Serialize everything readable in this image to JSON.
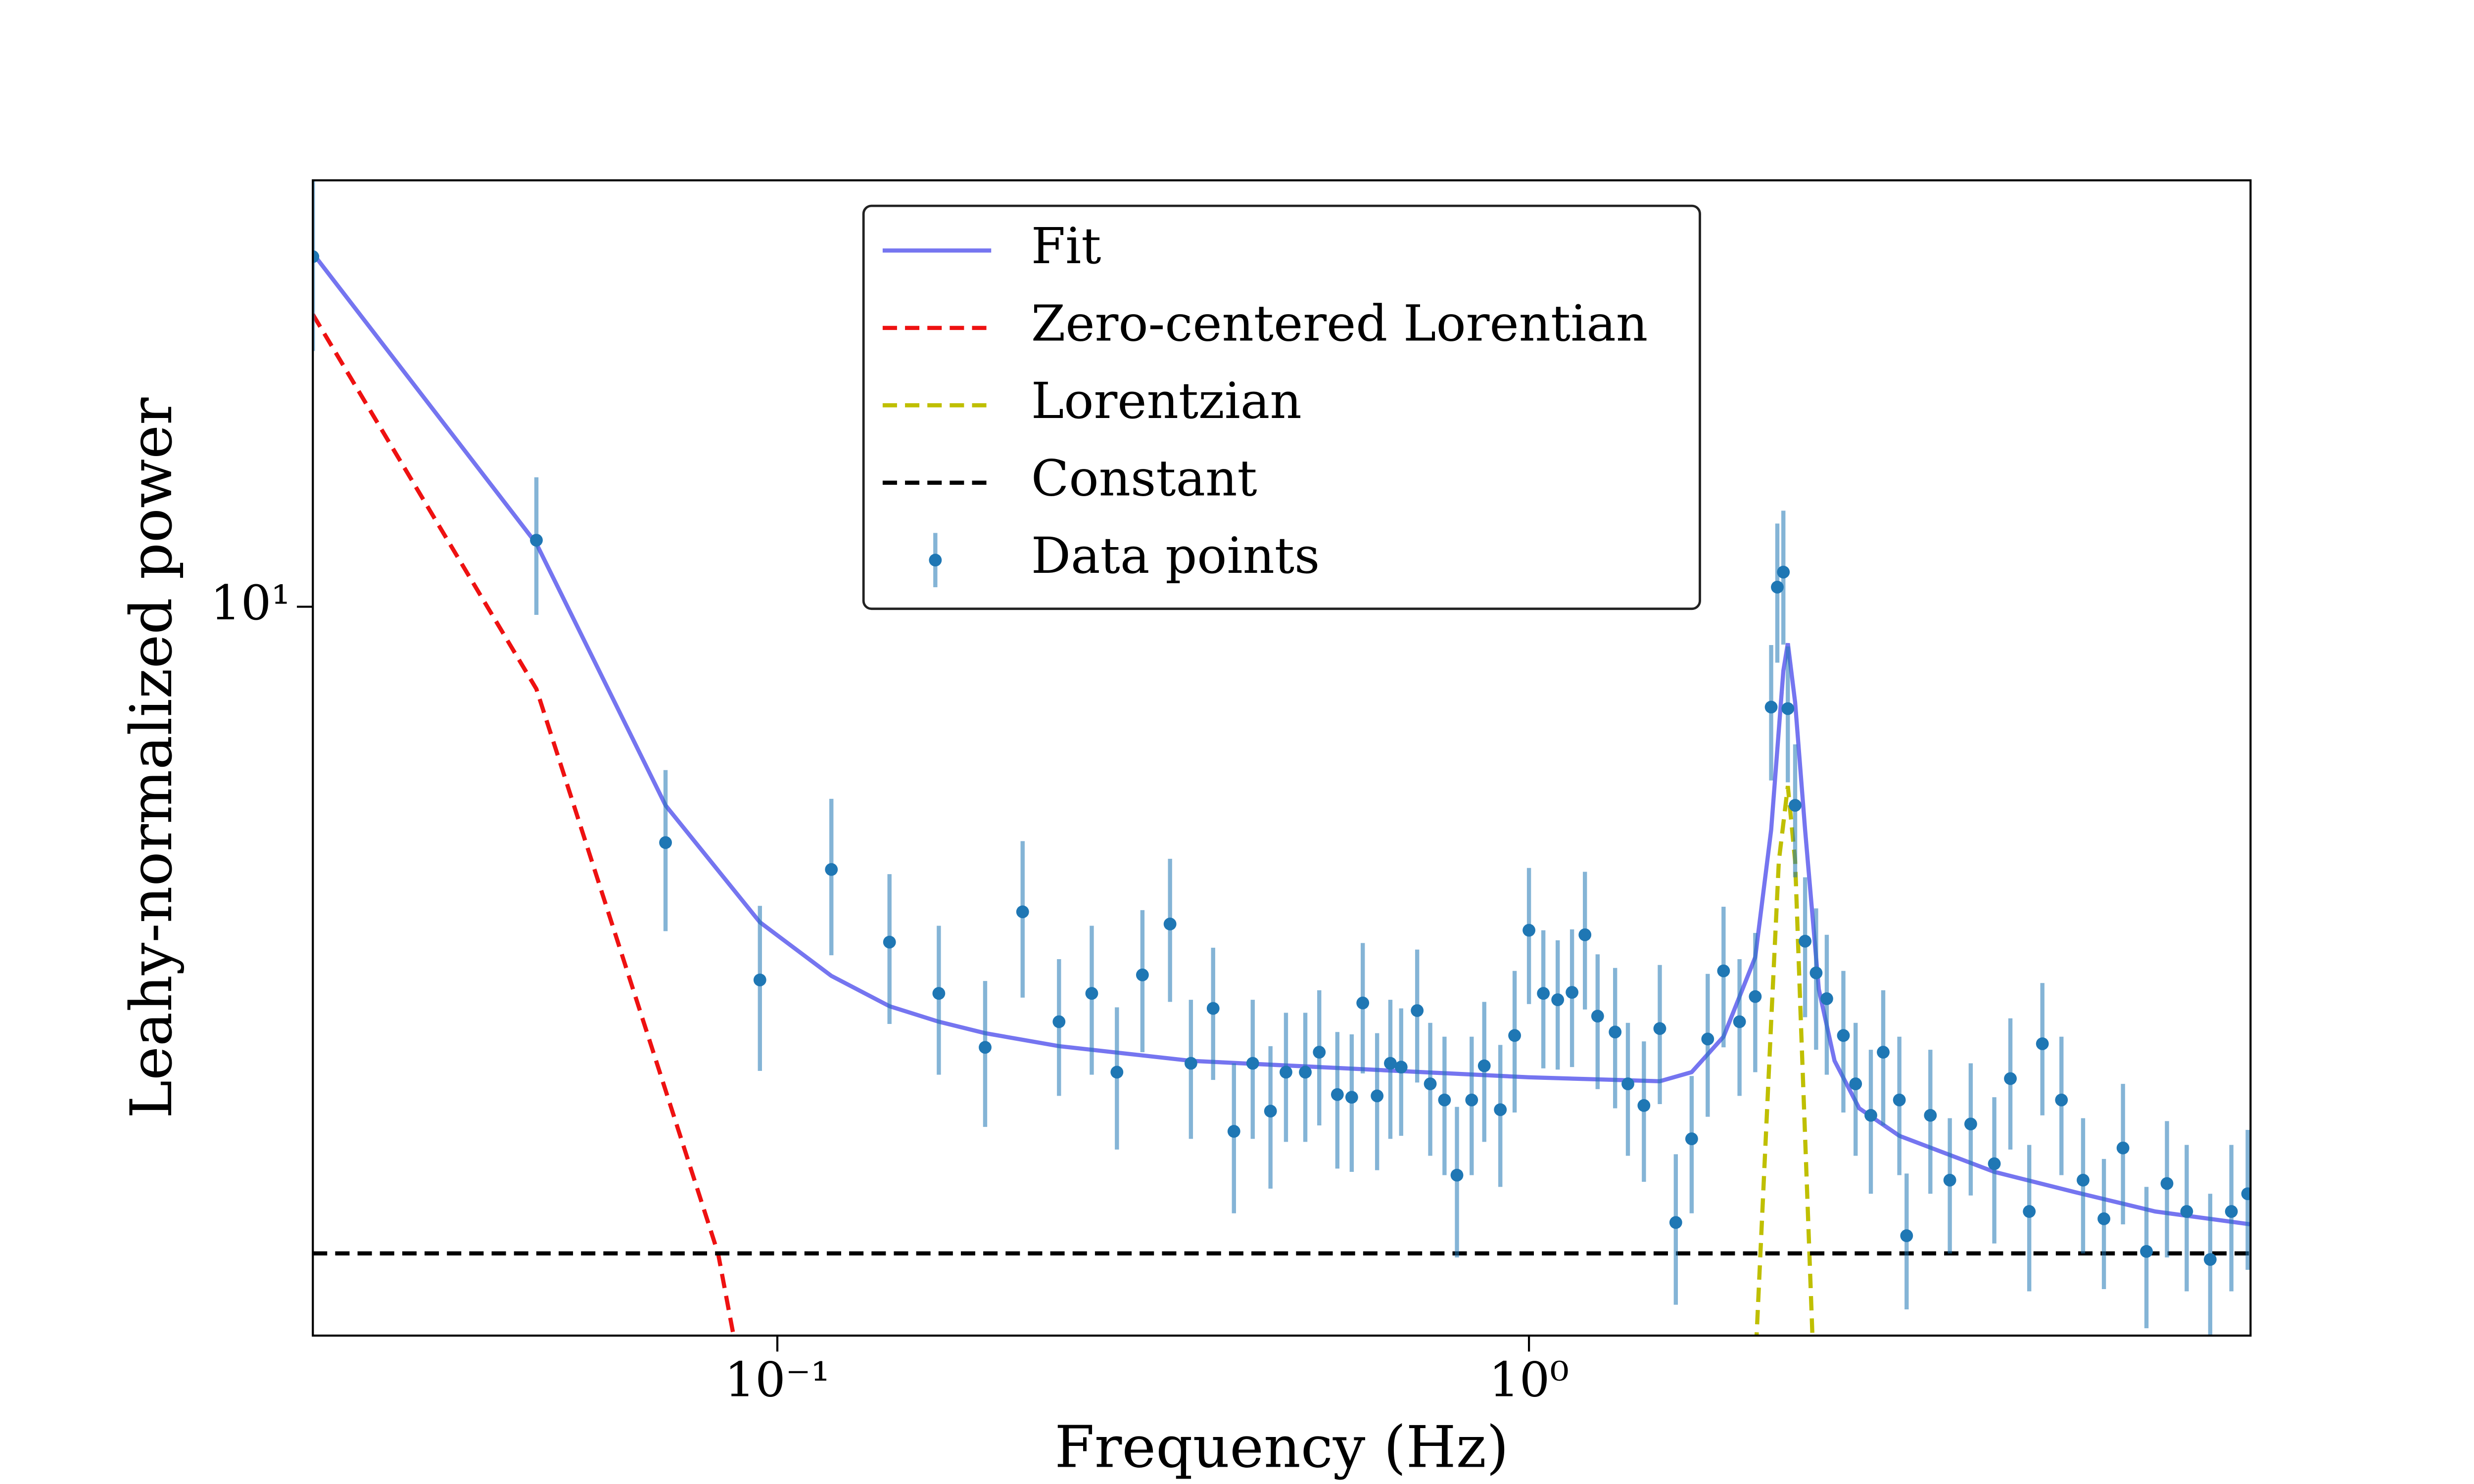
{
  "chart_data": {
    "type": "errorbar",
    "xlabel": "Frequency (Hz)",
    "ylabel": "Leahy-normalized power",
    "xscale": "log",
    "yscale": "log",
    "xlim": [
      0.0241,
      9.12
    ],
    "ylim": [
      1.63,
      28.9
    ],
    "xticks": [
      {
        "value": 0.1,
        "label": "10⁻¹"
      },
      {
        "value": 1,
        "label": "10⁰"
      }
    ],
    "yticks": [
      {
        "value": 10,
        "label": "10¹"
      }
    ],
    "legend": "upper center",
    "series": [
      {
        "name": "Fit",
        "kind": "line",
        "color": "#7575f0",
        "dashed": false,
        "x": [
          0.0241,
          0.0478,
          0.071,
          0.0948,
          0.118,
          0.141,
          0.164,
          0.189,
          0.237,
          0.355,
          1.0,
          1.493,
          1.646,
          1.815,
          2.0,
          2.1,
          2.18,
          2.21,
          2.26,
          2.33,
          2.43,
          2.55,
          2.75,
          3.11,
          4.16,
          5.32,
          6.81,
          9.12
        ],
        "values": [
          24.1,
          11.7,
          6.1,
          4.56,
          3.99,
          3.7,
          3.56,
          3.46,
          3.35,
          3.23,
          3.1,
          3.07,
          3.14,
          3.43,
          4.18,
          5.74,
          8.53,
          9.13,
          7.88,
          5.74,
          3.86,
          3.23,
          2.87,
          2.68,
          2.45,
          2.33,
          2.22,
          2.15
        ]
      },
      {
        "name": "Zero-centered Lorentian",
        "kind": "line",
        "color": "#ee1111",
        "dashed": true,
        "x": [
          0.0241,
          0.0478,
          0.0834,
          0.09
        ],
        "values": [
          20.7,
          8.15,
          2.0,
          1.44
        ]
      },
      {
        "name": "Lorentzian",
        "kind": "line",
        "color": "#bfbf00",
        "dashed": true,
        "x": [
          1.98,
          2.1,
          2.15,
          2.21,
          2.26,
          2.3,
          2.41
        ],
        "values": [
          1.27,
          3.56,
          5.31,
          6.4,
          5.31,
          3.56,
          1.27
        ]
      },
      {
        "name": "Constant",
        "kind": "line",
        "color": "#000000",
        "dashed": true,
        "x": [
          0.0241,
          9.12
        ],
        "values": [
          2,
          2
        ]
      },
      {
        "name": "Data points",
        "kind": "errorbar",
        "color": "#1f77b4",
        "x": [
          0.0241,
          0.0478,
          0.071,
          0.0948,
          0.118,
          0.141,
          0.164,
          0.189,
          0.212,
          0.237,
          0.262,
          0.283,
          0.306,
          0.333,
          0.355,
          0.38,
          0.405,
          0.429,
          0.453,
          0.475,
          0.504,
          0.526,
          0.556,
          0.581,
          0.601,
          0.628,
          0.654,
          0.676,
          0.71,
          0.739,
          0.772,
          0.802,
          0.839,
          0.872,
          0.916,
          0.957,
          1.0,
          1.045,
          1.092,
          1.141,
          1.187,
          1.234,
          1.302,
          1.354,
          1.422,
          1.493,
          1.568,
          1.646,
          1.729,
          1.815,
          1.906,
          2.0,
          2.1,
          2.14,
          2.18,
          2.21,
          2.26,
          2.33,
          2.41,
          2.49,
          2.62,
          2.72,
          2.85,
          2.96,
          3.11,
          3.18,
          3.42,
          3.63,
          3.87,
          4.16,
          4.37,
          4.63,
          4.82,
          5.11,
          5.46,
          5.82,
          6.17,
          6.63,
          7.06,
          7.5,
          8.06,
          8.6,
          9.04
        ],
        "values": [
          23.9,
          11.8,
          5.56,
          3.95,
          5.2,
          4.34,
          3.82,
          3.34,
          4.68,
          3.56,
          3.82,
          3.14,
          4.0,
          4.54,
          3.21,
          3.68,
          2.71,
          3.21,
          2.85,
          3.14,
          3.14,
          3.3,
          2.97,
          2.95,
          3.73,
          2.96,
          3.21,
          3.18,
          3.66,
          3.05,
          2.93,
          2.43,
          2.93,
          3.19,
          2.86,
          3.44,
          4.47,
          3.82,
          3.76,
          3.83,
          4.42,
          3.61,
          3.47,
          3.05,
          2.89,
          3.5,
          2.16,
          2.66,
          3.41,
          4.04,
          3.56,
          3.79,
          7.79,
          10.5,
          10.9,
          7.76,
          6.1,
          4.35,
          4.02,
          3.77,
          3.44,
          3.05,
          2.82,
          3.3,
          2.93,
          2.09,
          2.82,
          2.4,
          2.76,
          2.5,
          3.09,
          2.22,
          3.37,
          2.93,
          2.4,
          2.18,
          2.6,
          2.01,
          2.38,
          2.22,
          1.97,
          2.22,
          2.32
        ],
        "errors": [
          5.0,
          2.0,
          1.1,
          0.8,
          1.0,
          0.8,
          0.7,
          0.6,
          0.9,
          0.6,
          0.7,
          0.55,
          0.7,
          0.8,
          0.55,
          0.6,
          0.5,
          0.55,
          0.5,
          0.5,
          0.5,
          0.55,
          0.5,
          0.5,
          0.6,
          0.5,
          0.55,
          0.5,
          0.6,
          0.5,
          0.5,
          0.45,
          0.5,
          0.55,
          0.5,
          0.6,
          0.75,
          0.65,
          0.6,
          0.65,
          0.75,
          0.6,
          0.6,
          0.5,
          0.5,
          0.6,
          0.4,
          0.45,
          0.6,
          0.7,
          0.6,
          0.65,
          1.3,
          1.8,
          1.8,
          1.3,
          1.0,
          0.75,
          0.7,
          0.65,
          0.6,
          0.5,
          0.5,
          0.55,
          0.5,
          0.35,
          0.5,
          0.4,
          0.45,
          0.45,
          0.5,
          0.4,
          0.55,
          0.5,
          0.4,
          0.35,
          0.45,
          0.35,
          0.4,
          0.4,
          0.35,
          0.4,
          0.4
        ]
      }
    ]
  }
}
